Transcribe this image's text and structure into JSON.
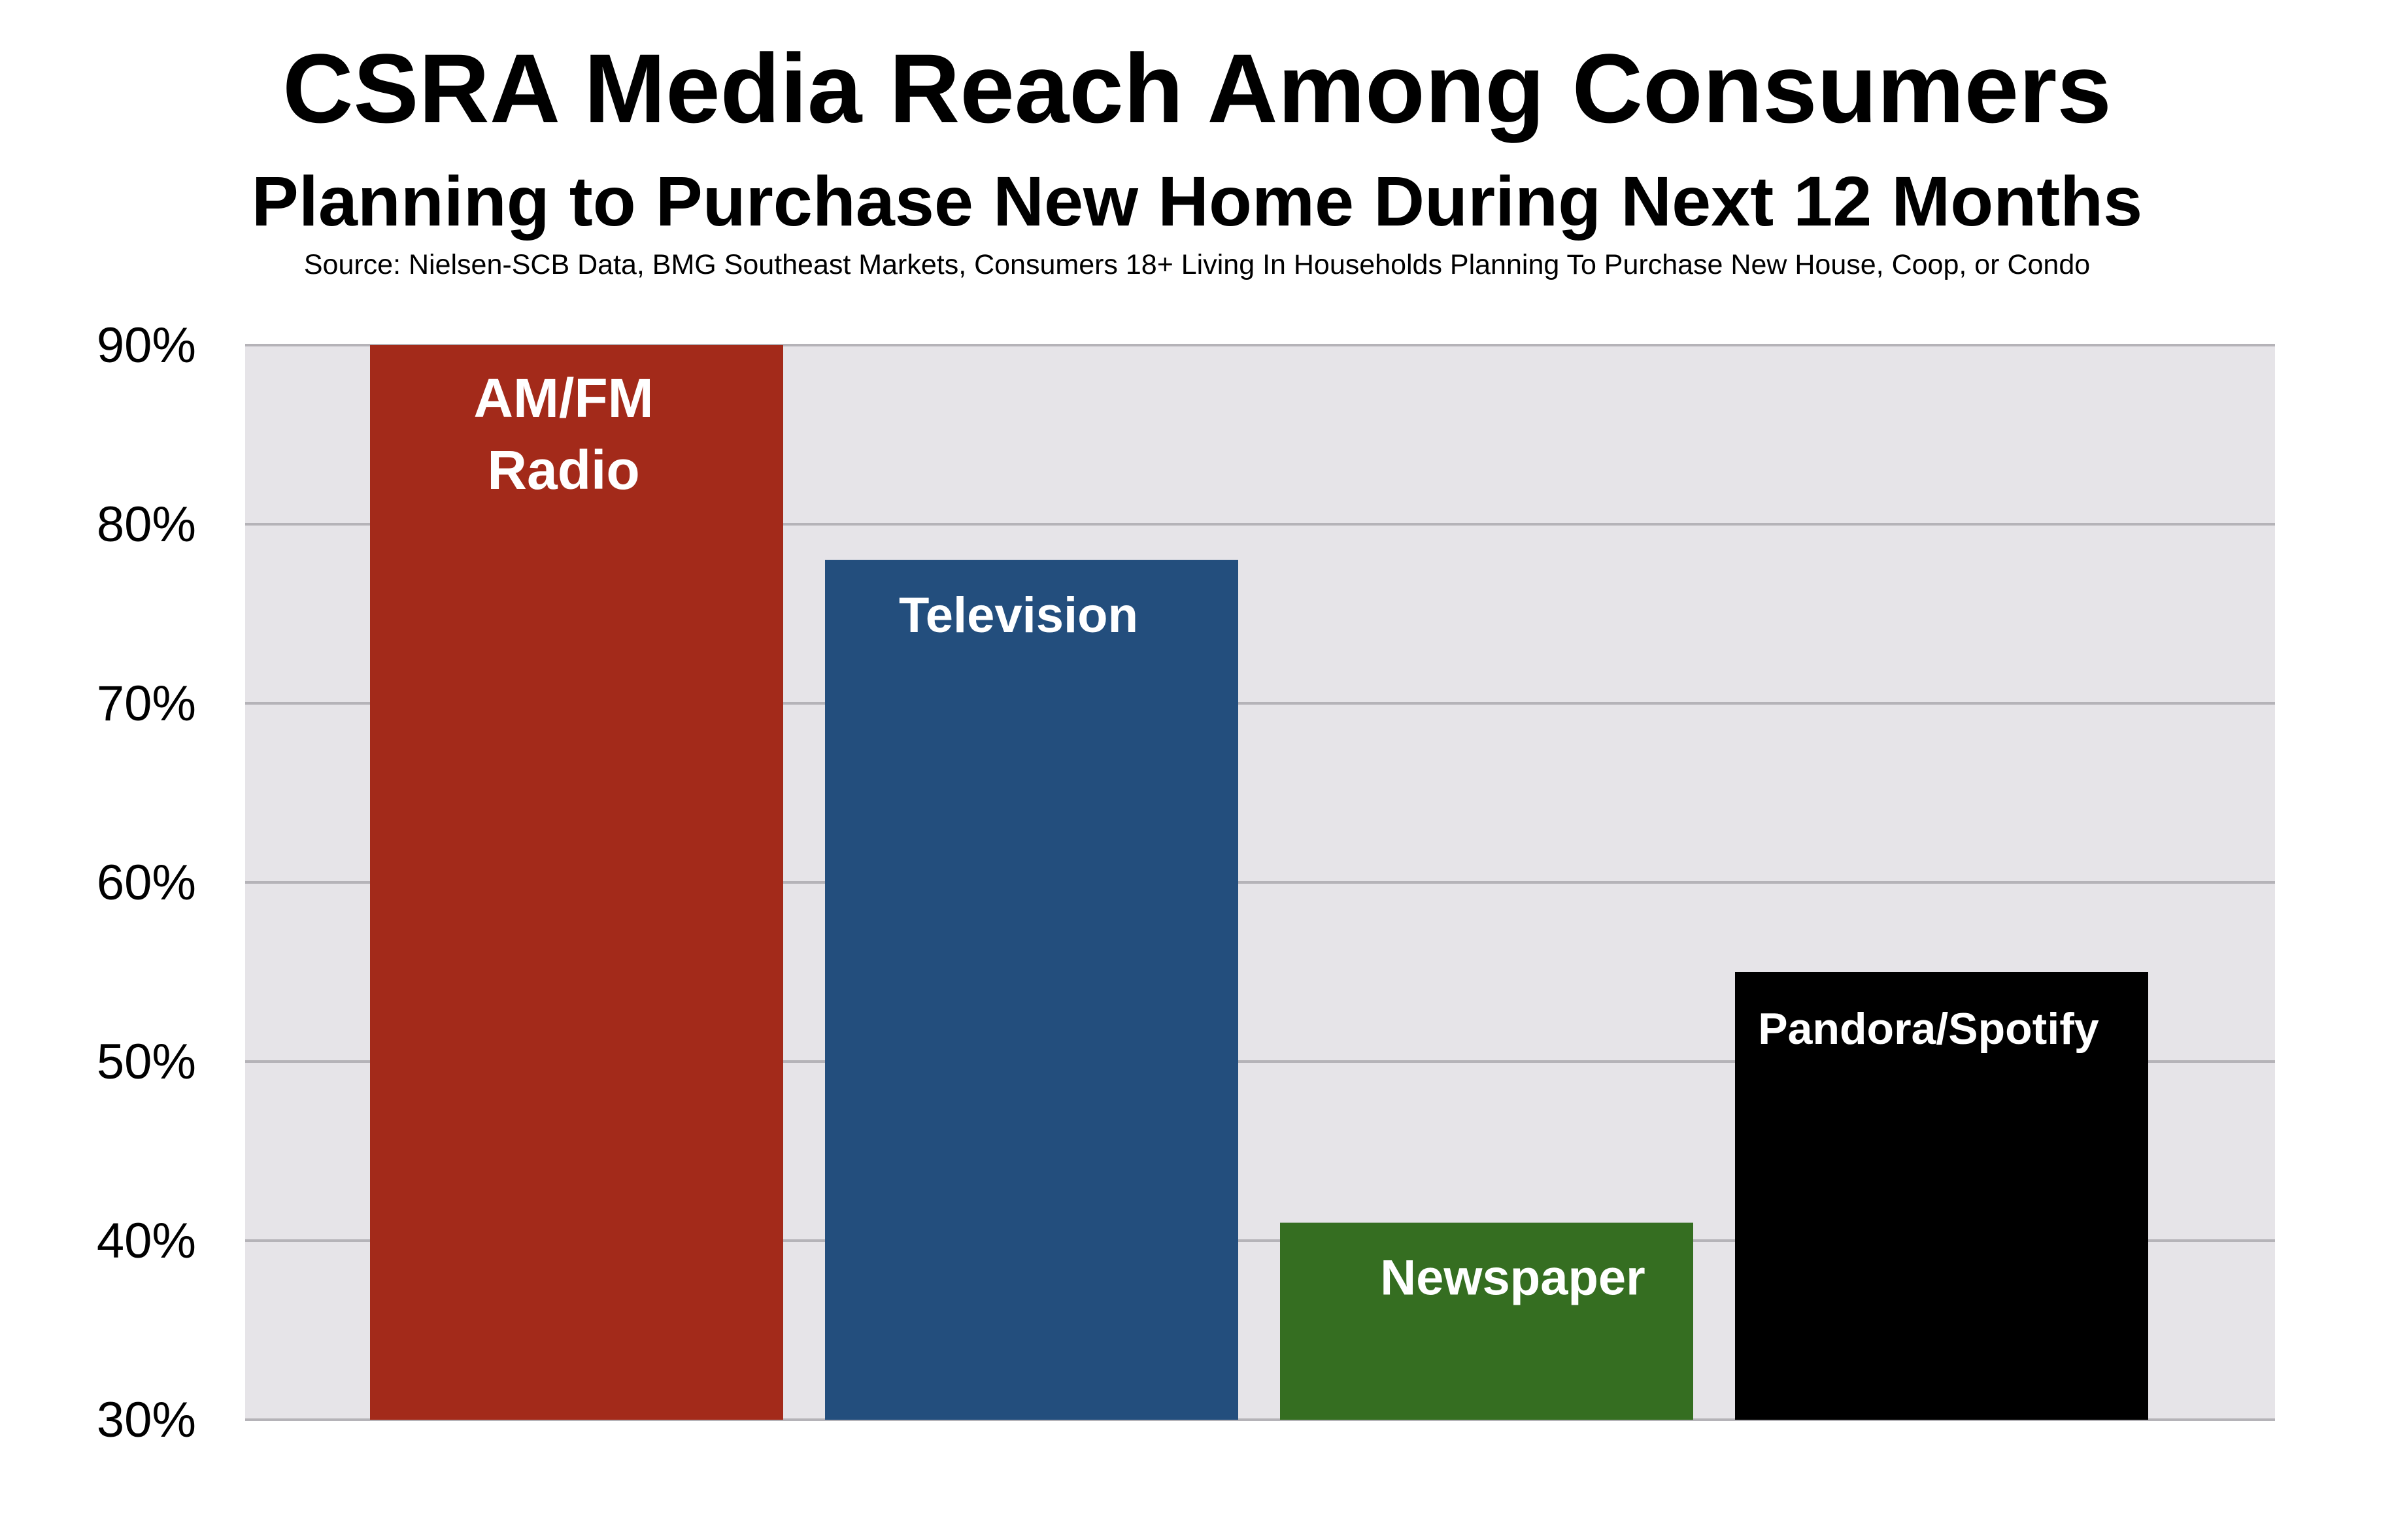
{
  "chart_data": {
    "type": "bar",
    "title": "CSRA Media Reach Among Consumers",
    "subtitle": "Planning to Purchase New Home During Next 12 Months",
    "source": "Source: Nielsen-SCB Data, BMG Southeast Markets, Consumers 18+ Living In Households Planning To Purchase New House, Coop, or Condo",
    "categories": [
      "AM/FM Radio",
      "Television",
      "Newspaper",
      "Pandora/Spotify"
    ],
    "bar_labels": [
      [
        "AM/FM",
        "Radio"
      ],
      [
        "Television"
      ],
      [
        "Newspaper"
      ],
      [
        "Pandora/Spotify"
      ]
    ],
    "values": [
      90,
      78,
      41,
      55
    ],
    "colors": [
      "#a32a1a",
      "#234e7d",
      "#356e21",
      "#000000"
    ],
    "unit": "%",
    "ylim": [
      30,
      90
    ],
    "y_ticks": [
      30,
      40,
      50,
      60,
      70,
      80,
      90
    ],
    "y_tick_labels": [
      "30%",
      "40%",
      "50%",
      "60%",
      "70%",
      "80%",
      "90%"
    ],
    "xlabel": "",
    "ylabel": "",
    "grid": true,
    "legend": "none",
    "plot_background": "#e6e4e8",
    "gridline_color": "#b5b3b8"
  }
}
